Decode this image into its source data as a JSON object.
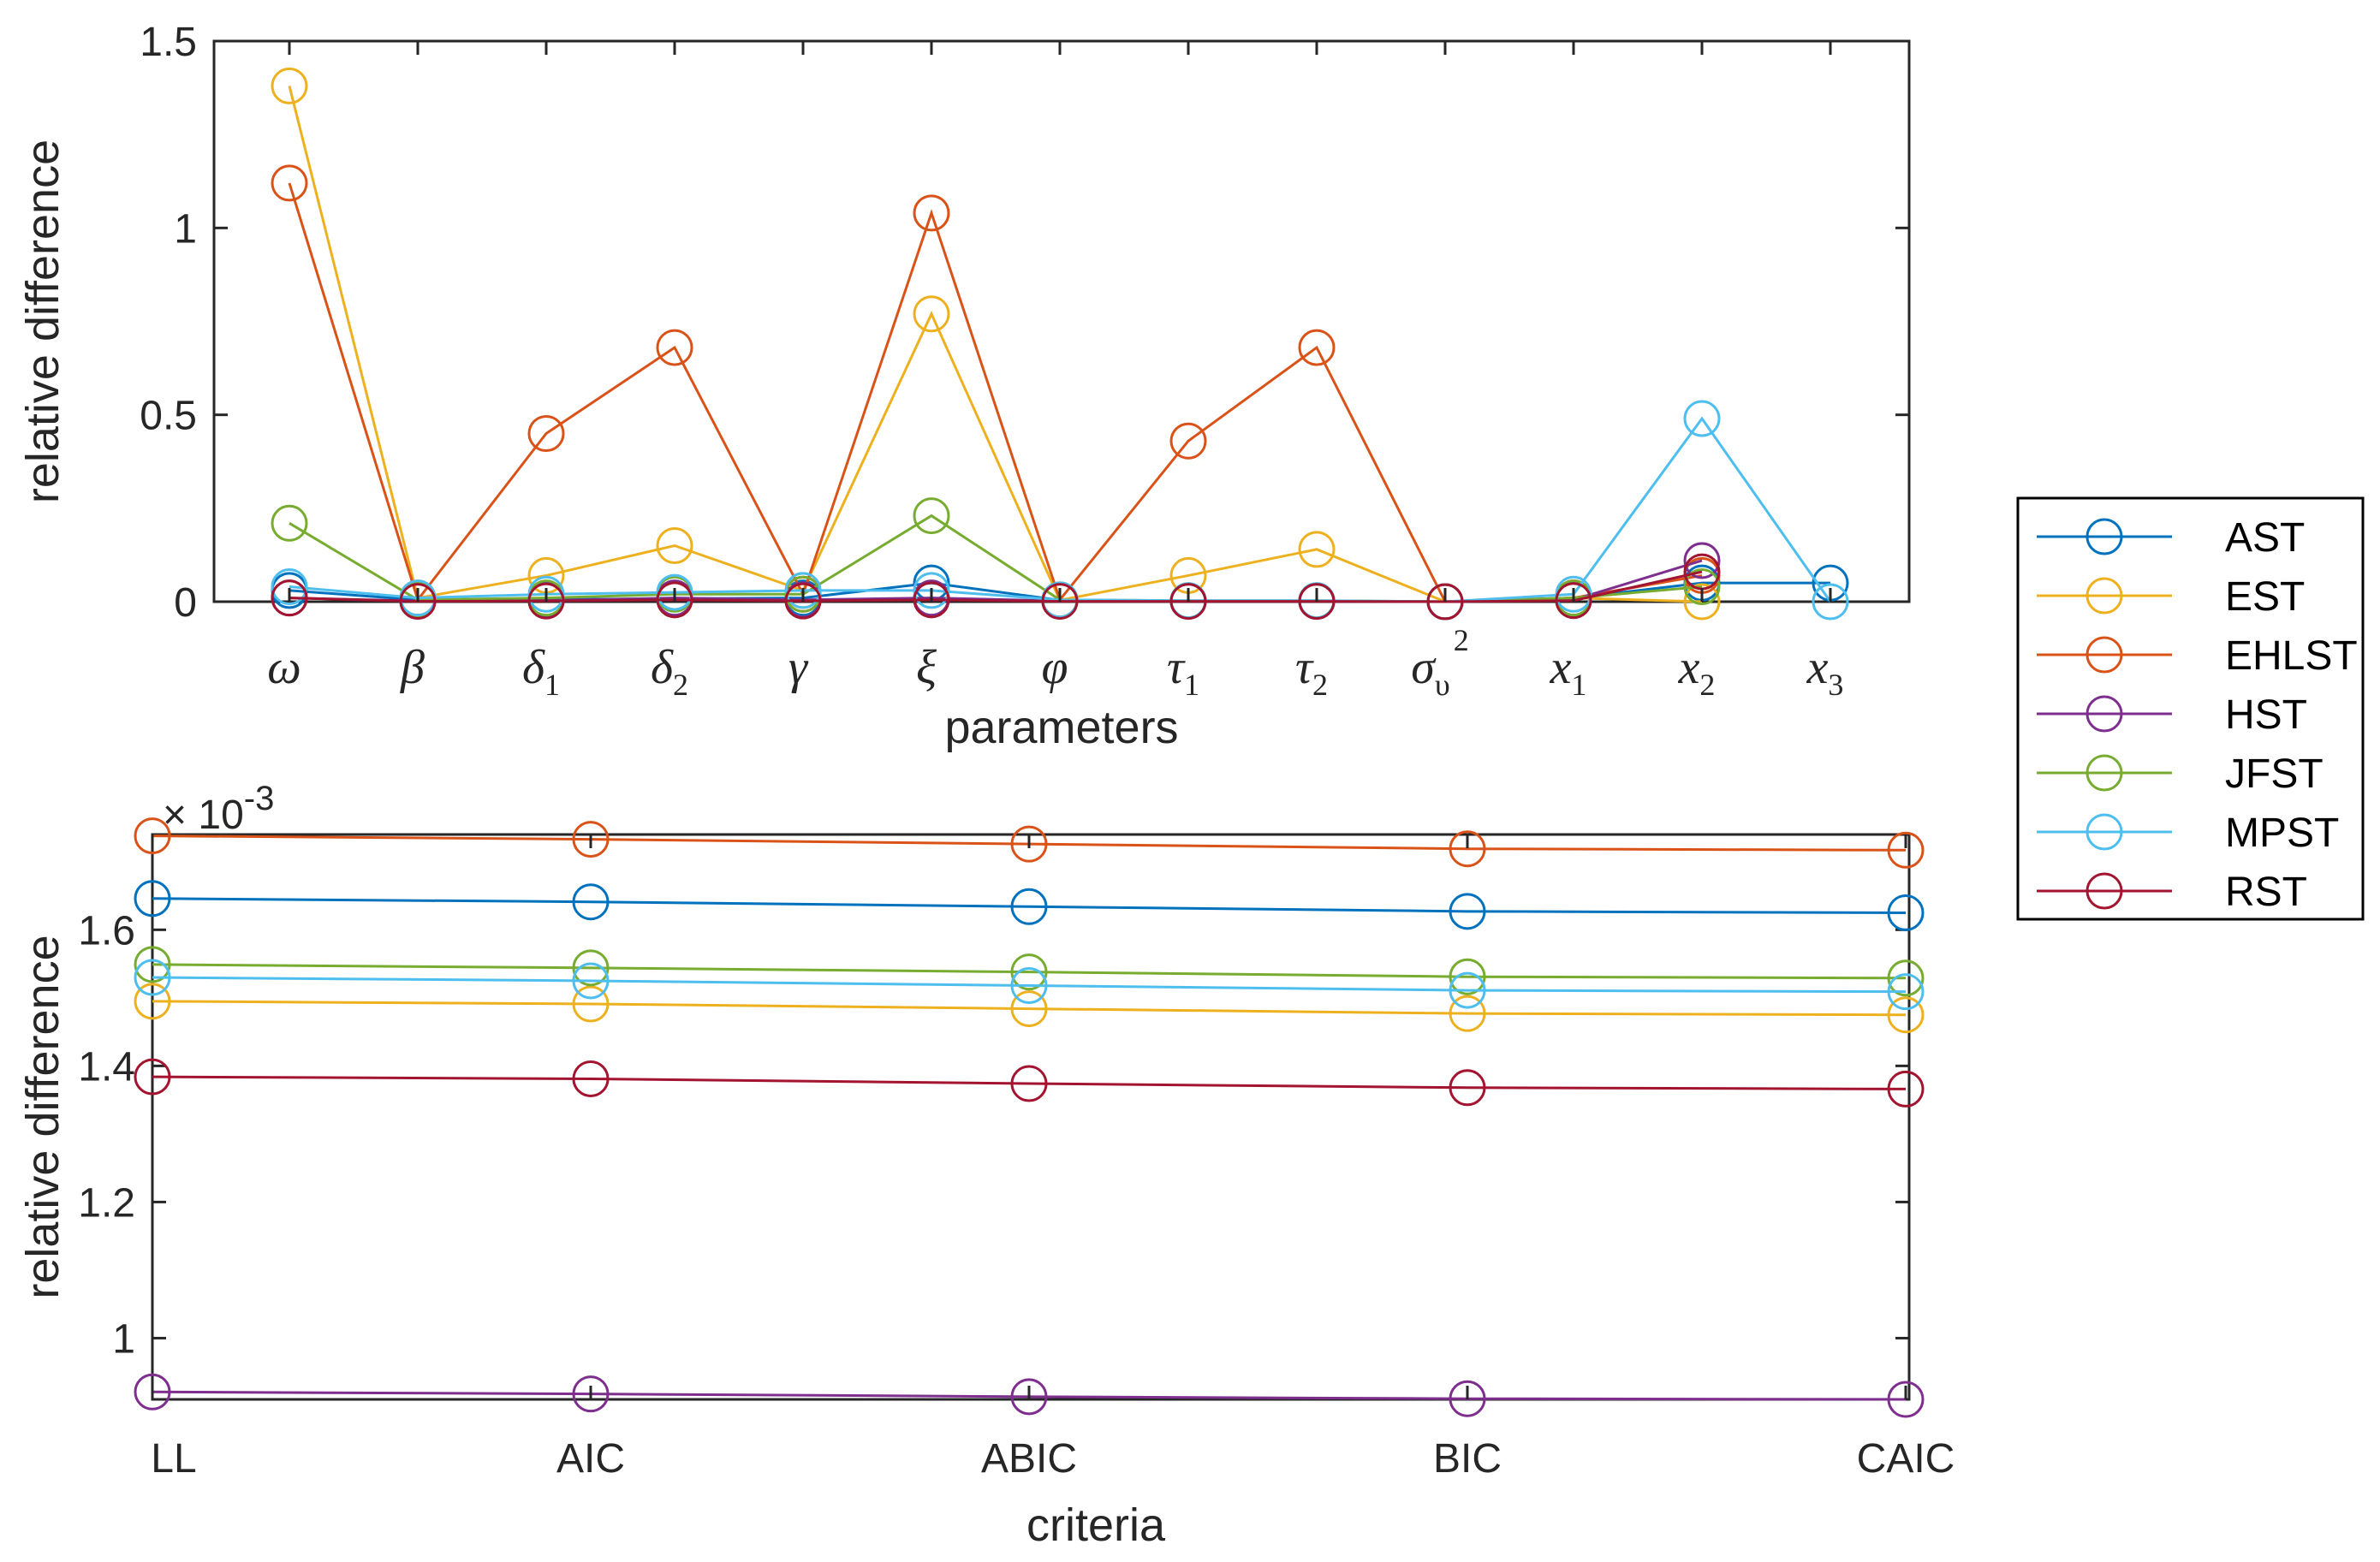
{
  "colors": {
    "AST": "#0072BD",
    "EST": "#EDB120",
    "EHLST": "#D95319",
    "HST": "#7E2F8E",
    "JFST": "#77AC30",
    "MPST": "#4DBEEE",
    "RST": "#A2142F",
    "axis": "#262626"
  },
  "chart_data": [
    {
      "type": "line",
      "xlabel": "parameters",
      "ylabel": "relative difference",
      "ylim": [
        0,
        1.5
      ],
      "yticks": [
        0,
        0.5,
        1,
        1.5
      ],
      "ytick_labels": [
        "0",
        "0.5",
        "1",
        "1.5"
      ],
      "categories": [
        {
          "base": "ω",
          "sub": "",
          "sup": ""
        },
        {
          "base": "β",
          "sub": "",
          "sup": ""
        },
        {
          "base": "δ",
          "sub": "1",
          "sup": ""
        },
        {
          "base": "δ",
          "sub": "2",
          "sup": ""
        },
        {
          "base": "γ",
          "sub": "",
          "sup": ""
        },
        {
          "base": "ξ",
          "sub": "",
          "sup": ""
        },
        {
          "base": "φ",
          "sub": "",
          "sup": ""
        },
        {
          "base": "τ",
          "sub": "1",
          "sup": ""
        },
        {
          "base": "τ",
          "sub": "2",
          "sup": ""
        },
        {
          "base": "σ",
          "sub": "υ",
          "sup": "2"
        },
        {
          "base": "x",
          "sub": "1",
          "sup": ""
        },
        {
          "base": "x",
          "sub": "2",
          "sup": ""
        },
        {
          "base": "x",
          "sub": "3",
          "sup": ""
        }
      ],
      "series": [
        {
          "name": "AST",
          "values": [
            0.03,
            0.005,
            0.006,
            0.008,
            0.01,
            0.05,
            0.004,
            0.002,
            0.002,
            0.0,
            0.01,
            0.05,
            0.05
          ]
        },
        {
          "name": "EST",
          "values": [
            1.38,
            0.01,
            0.07,
            0.15,
            0.03,
            0.77,
            0.004,
            0.07,
            0.14,
            0.0,
            0.01,
            0.0,
            null
          ]
        },
        {
          "name": "EHLST",
          "values": [
            1.12,
            0.005,
            0.45,
            0.68,
            0.02,
            1.04,
            0.005,
            0.43,
            0.68,
            0.0,
            0.01,
            0.07,
            null
          ]
        },
        {
          "name": "HST",
          "values": [
            0.01,
            0.002,
            0.003,
            0.01,
            0.005,
            0.01,
            0.002,
            0.001,
            0.001,
            0.0,
            0.005,
            0.11,
            null
          ]
        },
        {
          "name": "JFST",
          "values": [
            0.21,
            0.005,
            0.01,
            0.02,
            0.02,
            0.23,
            0.005,
            0.003,
            0.003,
            0.0,
            0.01,
            0.04,
            null
          ]
        },
        {
          "name": "MPST",
          "values": [
            0.04,
            0.01,
            0.02,
            0.025,
            0.03,
            0.03,
            0.005,
            0.003,
            0.003,
            0.0,
            0.02,
            0.49,
            0.0
          ]
        },
        {
          "name": "RST",
          "values": [
            0.01,
            0.001,
            0.002,
            0.005,
            0.002,
            0.005,
            0.001,
            0.001,
            0.001,
            0.0,
            0.003,
            0.08,
            null
          ]
        }
      ]
    },
    {
      "type": "line",
      "xlabel": "criteria",
      "ylabel": "relative difference",
      "scale_label": "× 10",
      "scale_exponent": "-3",
      "ylim": [
        0.91,
        1.74
      ],
      "yticks": [
        1.0,
        1.2,
        1.4,
        1.6
      ],
      "ytick_labels": [
        "1",
        "1.2",
        "1.4",
        "1.6"
      ],
      "categories": [
        "LL",
        "AIC",
        "ABIC",
        "BIC",
        "CAIC"
      ],
      "series": [
        {
          "name": "AST",
          "values": [
            1.646,
            1.641,
            1.634,
            1.627,
            1.625
          ]
        },
        {
          "name": "EST",
          "values": [
            1.495,
            1.491,
            1.484,
            1.477,
            1.475
          ]
        },
        {
          "name": "EHLST",
          "values": [
            1.738,
            1.733,
            1.726,
            1.719,
            1.717
          ]
        },
        {
          "name": "HST",
          "values": [
            0.921,
            0.918,
            0.914,
            0.911,
            0.91
          ]
        },
        {
          "name": "JFST",
          "values": [
            1.549,
            1.544,
            1.538,
            1.531,
            1.529
          ]
        },
        {
          "name": "MPST",
          "values": [
            1.53,
            1.525,
            1.518,
            1.511,
            1.509
          ]
        },
        {
          "name": "RST",
          "values": [
            1.384,
            1.381,
            1.374,
            1.368,
            1.366
          ]
        }
      ]
    }
  ],
  "legend": {
    "position": "right",
    "entries": [
      "AST",
      "EST",
      "EHLST",
      "HST",
      "JFST",
      "MPST",
      "RST"
    ]
  }
}
